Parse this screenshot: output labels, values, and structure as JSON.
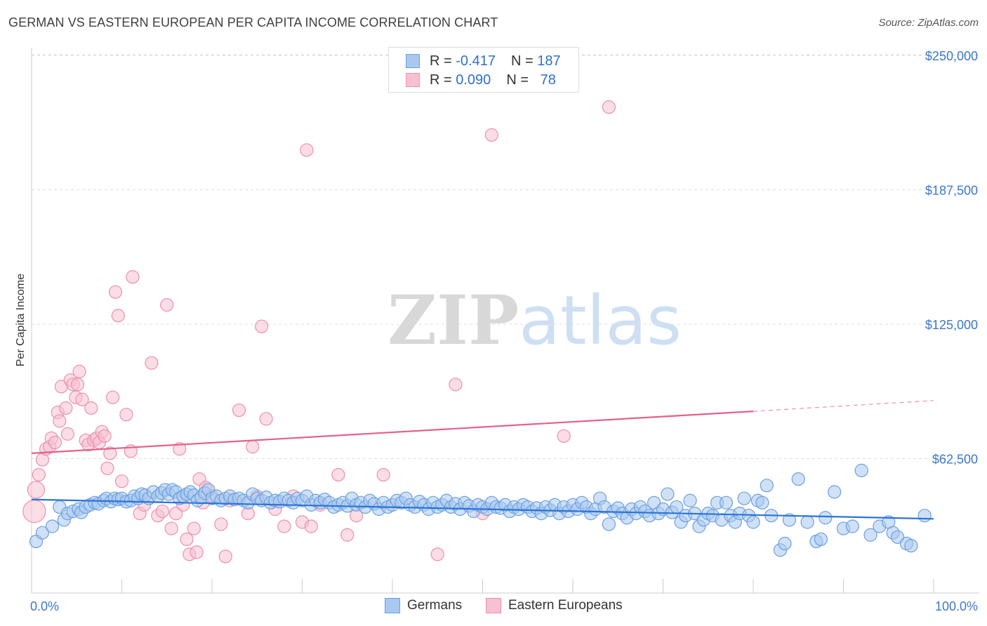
{
  "header": {
    "title": "GERMAN VS EASTERN EUROPEAN PER CAPITA INCOME CORRELATION CHART",
    "source": "Source: ZipAtlas.com"
  },
  "watermark": {
    "part1": "ZIP",
    "part2": "atlas"
  },
  "legend": {
    "rows": [
      {
        "r_label": "R =",
        "r_value": "-0.417",
        "n_label": "N =",
        "n_value": "187"
      },
      {
        "r_label": "R =",
        "r_value": "0.090",
        "n_label": "N =",
        "n_value": "78"
      }
    ]
  },
  "bottom_legend": {
    "german": "Germans",
    "eastern": "Eastern Europeans"
  },
  "colors": {
    "german_fill": "#a9c8f0",
    "german_stroke": "#6a9fe0",
    "german_line": "#2a74d4",
    "eastern_fill": "#f8c1d2",
    "eastern_stroke": "#ec8fae",
    "eastern_line": "#e2608e",
    "grid": "#dddddd",
    "tick_text": "#3b78c8"
  },
  "chart_data": {
    "type": "scatter",
    "title": "GERMAN VS EASTERN EUROPEAN PER CAPITA INCOME CORRELATION CHART",
    "xlabel": "",
    "ylabel": "Per Capita Income",
    "xlim": [
      0,
      100
    ],
    "ylim": [
      0,
      262500
    ],
    "x_tick_labels": [
      "0.0%",
      "100.0%"
    ],
    "y_ticks": [
      62500,
      125000,
      187500,
      250000
    ],
    "y_tick_labels": [
      "$62,500",
      "$125,000",
      "$187,500",
      "$250,000"
    ],
    "grid": "horizontal dashed",
    "legend_position": "top-center",
    "series": [
      {
        "name": "Germans",
        "r": -0.417,
        "n": 187,
        "trend": {
          "x": [
            0,
            100
          ],
          "y": [
            43500,
            34500
          ]
        },
        "points": [
          [
            0.5,
            24000
          ],
          [
            1.2,
            28000
          ],
          [
            2.3,
            31000
          ],
          [
            3.1,
            40000
          ],
          [
            3.6,
            34000
          ],
          [
            4.0,
            37000
          ],
          [
            4.6,
            38000
          ],
          [
            5.2,
            39000
          ],
          [
            5.5,
            37500
          ],
          [
            6.0,
            40000
          ],
          [
            6.5,
            41000
          ],
          [
            7.0,
            42000
          ],
          [
            7.4,
            41500
          ],
          [
            8.0,
            43000
          ],
          [
            8.3,
            44000
          ],
          [
            8.8,
            42500
          ],
          [
            9.2,
            44000
          ],
          [
            9.6,
            43500
          ],
          [
            10.0,
            44000
          ],
          [
            10.5,
            42500
          ],
          [
            11.0,
            43000
          ],
          [
            11.4,
            45000
          ],
          [
            11.8,
            44000
          ],
          [
            12.2,
            46000
          ],
          [
            12.6,
            45500
          ],
          [
            13.0,
            44000
          ],
          [
            13.5,
            47000
          ],
          [
            14.0,
            45000
          ],
          [
            14.4,
            46500
          ],
          [
            14.8,
            48000
          ],
          [
            15.2,
            46000
          ],
          [
            15.6,
            48000
          ],
          [
            16.0,
            47000
          ],
          [
            16.4,
            44000
          ],
          [
            16.8,
            45000
          ],
          [
            17.2,
            46000
          ],
          [
            17.6,
            47000
          ],
          [
            18.0,
            45500
          ],
          [
            18.4,
            43000
          ],
          [
            18.8,
            44500
          ],
          [
            19.2,
            46500
          ],
          [
            19.6,
            48000
          ],
          [
            20.0,
            44000
          ],
          [
            20.5,
            45000
          ],
          [
            21.0,
            43000
          ],
          [
            21.5,
            44000
          ],
          [
            22.0,
            45000
          ],
          [
            22.5,
            43500
          ],
          [
            23.0,
            44000
          ],
          [
            23.5,
            43000
          ],
          [
            24.0,
            42000
          ],
          [
            24.5,
            46000
          ],
          [
            25.0,
            44000
          ],
          [
            25.5,
            43000
          ],
          [
            26.0,
            44500
          ],
          [
            26.5,
            42000
          ],
          [
            27.0,
            43000
          ],
          [
            27.5,
            42500
          ],
          [
            28.0,
            44000
          ],
          [
            28.5,
            43000
          ],
          [
            29.0,
            42000
          ],
          [
            29.5,
            44000
          ],
          [
            30.0,
            43000
          ],
          [
            30.5,
            45000
          ],
          [
            31.0,
            41000
          ],
          [
            31.5,
            43000
          ],
          [
            32.0,
            42000
          ],
          [
            32.5,
            43500
          ],
          [
            33.0,
            42000
          ],
          [
            33.5,
            40000
          ],
          [
            34.0,
            41000
          ],
          [
            34.5,
            42000
          ],
          [
            35.0,
            40500
          ],
          [
            35.5,
            44000
          ],
          [
            36.0,
            41000
          ],
          [
            36.5,
            42000
          ],
          [
            37.0,
            40000
          ],
          [
            37.5,
            43000
          ],
          [
            38.0,
            41500
          ],
          [
            38.5,
            39000
          ],
          [
            39.0,
            42000
          ],
          [
            39.5,
            40000
          ],
          [
            40.0,
            41000
          ],
          [
            40.5,
            43000
          ],
          [
            41.0,
            42000
          ],
          [
            41.5,
            44000
          ],
          [
            42.0,
            41000
          ],
          [
            42.5,
            40000
          ],
          [
            43.0,
            42500
          ],
          [
            43.5,
            41000
          ],
          [
            44.0,
            39000
          ],
          [
            44.5,
            42000
          ],
          [
            45.0,
            40000
          ],
          [
            45.5,
            41000
          ],
          [
            46.0,
            43000
          ],
          [
            46.5,
            40000
          ],
          [
            47.0,
            41500
          ],
          [
            47.5,
            39000
          ],
          [
            48.0,
            42000
          ],
          [
            48.5,
            40500
          ],
          [
            49.0,
            38000
          ],
          [
            49.5,
            41000
          ],
          [
            50.0,
            40000
          ],
          [
            50.5,
            39000
          ],
          [
            51.0,
            42000
          ],
          [
            51.5,
            40000
          ],
          [
            52.0,
            39500
          ],
          [
            52.5,
            41000
          ],
          [
            53.0,
            38000
          ],
          [
            53.5,
            40000
          ],
          [
            54.0,
            39000
          ],
          [
            54.5,
            41000
          ],
          [
            55.0,
            40000
          ],
          [
            55.5,
            38000
          ],
          [
            56.0,
            39500
          ],
          [
            56.5,
            37000
          ],
          [
            57.0,
            40000
          ],
          [
            57.5,
            38500
          ],
          [
            58.0,
            41000
          ],
          [
            58.5,
            37000
          ],
          [
            59.0,
            40000
          ],
          [
            59.5,
            38000
          ],
          [
            60.0,
            41000
          ],
          [
            60.5,
            39000
          ],
          [
            61.0,
            42000
          ],
          [
            61.5,
            40000
          ],
          [
            62.0,
            37000
          ],
          [
            62.5,
            39000
          ],
          [
            63.0,
            44000
          ],
          [
            63.5,
            40000
          ],
          [
            64.0,
            32000
          ],
          [
            64.5,
            38000
          ],
          [
            65.0,
            39500
          ],
          [
            65.5,
            37000
          ],
          [
            66.0,
            35000
          ],
          [
            66.5,
            39000
          ],
          [
            67.0,
            37000
          ],
          [
            67.5,
            40000
          ],
          [
            68.0,
            38000
          ],
          [
            68.5,
            36000
          ],
          [
            69.0,
            42000
          ],
          [
            69.5,
            37000
          ],
          [
            70.0,
            39000
          ],
          [
            70.5,
            46000
          ],
          [
            71.0,
            37500
          ],
          [
            71.5,
            40000
          ],
          [
            72.0,
            33000
          ],
          [
            72.5,
            36000
          ],
          [
            73.0,
            43000
          ],
          [
            73.5,
            37000
          ],
          [
            74.0,
            31000
          ],
          [
            74.5,
            34000
          ],
          [
            75.0,
            37000
          ],
          [
            75.5,
            36000
          ],
          [
            76.0,
            42000
          ],
          [
            76.5,
            34000
          ],
          [
            77.0,
            42000
          ],
          [
            77.5,
            36000
          ],
          [
            78.0,
            33000
          ],
          [
            78.5,
            37000
          ],
          [
            79.0,
            44000
          ],
          [
            79.5,
            36000
          ],
          [
            80.0,
            33000
          ],
          [
            80.5,
            43000
          ],
          [
            81.0,
            42000
          ],
          [
            81.5,
            50000
          ],
          [
            82.0,
            36000
          ],
          [
            83.0,
            20000
          ],
          [
            83.5,
            23000
          ],
          [
            84.0,
            34000
          ],
          [
            85.0,
            53000
          ],
          [
            86.0,
            33000
          ],
          [
            87.0,
            24000
          ],
          [
            87.5,
            25000
          ],
          [
            88.0,
            35000
          ],
          [
            89.0,
            47000
          ],
          [
            90.0,
            30000
          ],
          [
            91.0,
            31000
          ],
          [
            92.0,
            57000
          ],
          [
            93.0,
            27000
          ],
          [
            94.0,
            31000
          ],
          [
            95.0,
            33000
          ],
          [
            95.5,
            28000
          ],
          [
            96.0,
            26000
          ],
          [
            97.0,
            23000
          ],
          [
            97.5,
            22000
          ],
          [
            99.0,
            36000
          ]
        ]
      },
      {
        "name": "Eastern Europeans",
        "r": 0.09,
        "n": 78,
        "trend": {
          "x": [
            0,
            80
          ],
          "y": [
            65000,
            84500
          ]
        },
        "trend_dashed": {
          "x": [
            80,
            100
          ],
          "y": [
            84500,
            89500
          ]
        },
        "points": [
          [
            0.3,
            38000
          ],
          [
            0.5,
            48000
          ],
          [
            0.8,
            55000
          ],
          [
            1.2,
            62000
          ],
          [
            1.6,
            67000
          ],
          [
            2.0,
            68000
          ],
          [
            2.2,
            72000
          ],
          [
            2.6,
            70000
          ],
          [
            2.9,
            84000
          ],
          [
            3.1,
            80000
          ],
          [
            3.3,
            96000
          ],
          [
            3.8,
            86000
          ],
          [
            4.0,
            74000
          ],
          [
            4.3,
            99000
          ],
          [
            4.6,
            97000
          ],
          [
            4.9,
            91000
          ],
          [
            5.1,
            97000
          ],
          [
            5.3,
            103000
          ],
          [
            5.6,
            90000
          ],
          [
            6.0,
            71000
          ],
          [
            6.3,
            69000
          ],
          [
            6.6,
            86000
          ],
          [
            6.9,
            71000
          ],
          [
            7.2,
            72000
          ],
          [
            7.5,
            70000
          ],
          [
            7.8,
            75000
          ],
          [
            8.1,
            73000
          ],
          [
            8.4,
            58000
          ],
          [
            8.7,
            65000
          ],
          [
            9.0,
            91000
          ],
          [
            9.3,
            140000
          ],
          [
            9.6,
            129000
          ],
          [
            10.0,
            52000
          ],
          [
            10.5,
            83000
          ],
          [
            11.0,
            66000
          ],
          [
            11.2,
            147000
          ],
          [
            12.0,
            37000
          ],
          [
            12.5,
            41000
          ],
          [
            13.3,
            107000
          ],
          [
            14.0,
            36000
          ],
          [
            14.5,
            38000
          ],
          [
            15.0,
            134000
          ],
          [
            15.5,
            30000
          ],
          [
            16.0,
            37000
          ],
          [
            16.4,
            67000
          ],
          [
            16.8,
            41000
          ],
          [
            17.2,
            25000
          ],
          [
            17.5,
            18000
          ],
          [
            18.0,
            30000
          ],
          [
            18.3,
            19000
          ],
          [
            18.6,
            53000
          ],
          [
            19.0,
            42000
          ],
          [
            19.3,
            49000
          ],
          [
            20.0,
            45000
          ],
          [
            21.0,
            32000
          ],
          [
            21.5,
            17000
          ],
          [
            22.0,
            43000
          ],
          [
            23.0,
            85000
          ],
          [
            24.0,
            37000
          ],
          [
            24.5,
            68000
          ],
          [
            25.0,
            45000
          ],
          [
            25.5,
            124000
          ],
          [
            26.0,
            81000
          ],
          [
            27.0,
            39000
          ],
          [
            28.0,
            31000
          ],
          [
            29.0,
            45000
          ],
          [
            30.0,
            33000
          ],
          [
            30.5,
            206000
          ],
          [
            31.0,
            31000
          ],
          [
            32.0,
            41000
          ],
          [
            34.0,
            55000
          ],
          [
            35.0,
            27000
          ],
          [
            36.0,
            36000
          ],
          [
            39.0,
            55000
          ],
          [
            45.0,
            18000
          ],
          [
            47.0,
            97000
          ],
          [
            50.0,
            37000
          ],
          [
            51.0,
            213000
          ],
          [
            59.0,
            73000
          ],
          [
            64.0,
            226000
          ]
        ]
      }
    ]
  }
}
